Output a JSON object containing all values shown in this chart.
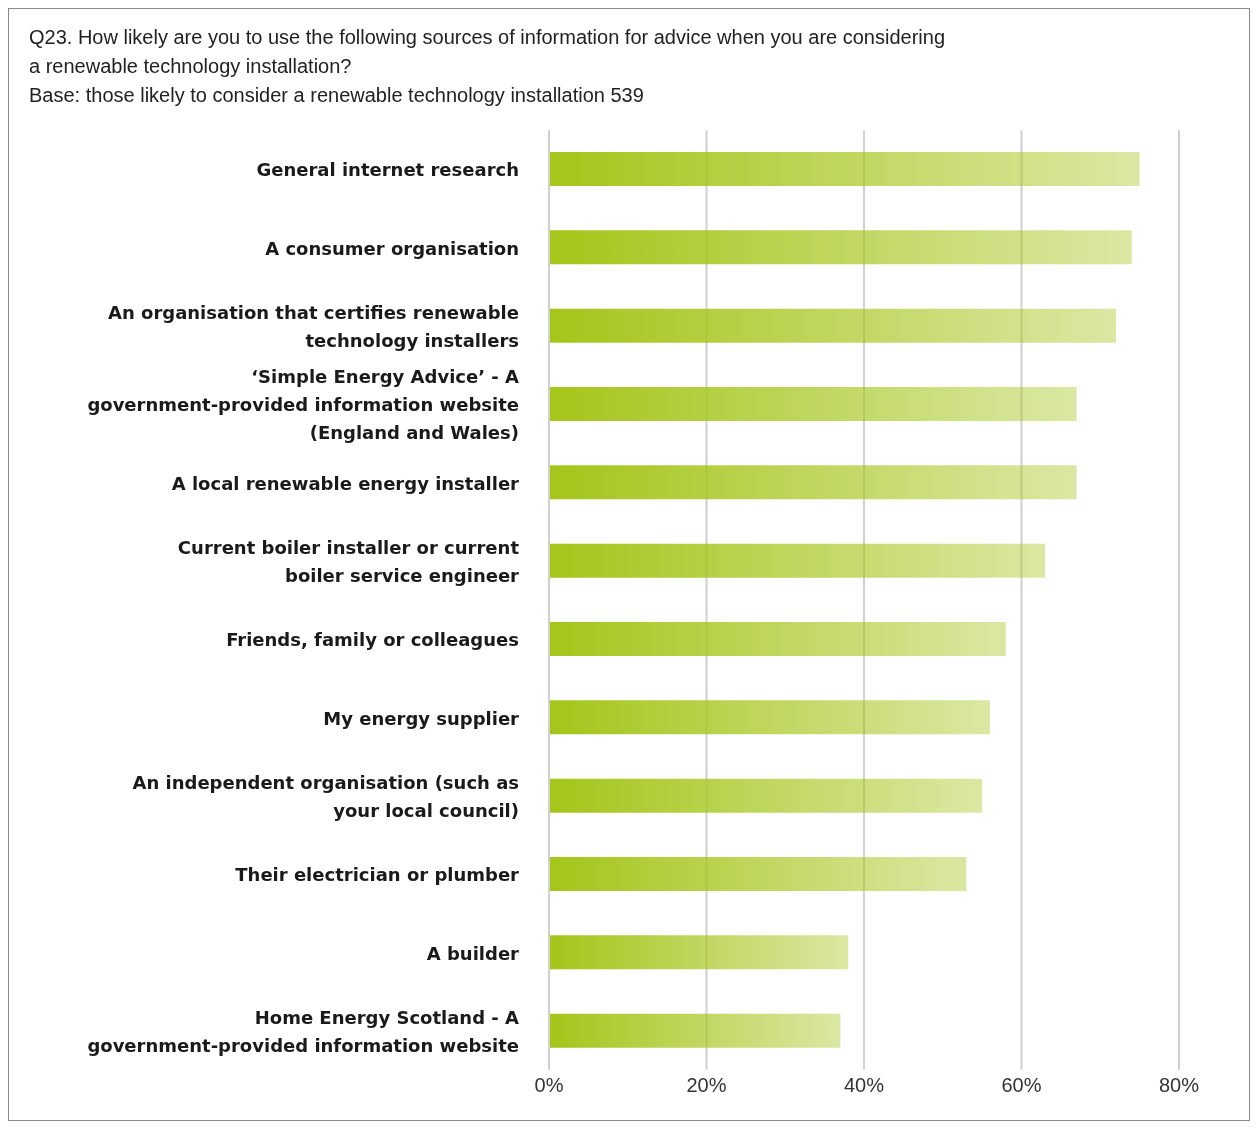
{
  "chart_data": {
    "type": "bar",
    "orientation": "horizontal",
    "title": "Q23. How likely are you to use the following sources of information for advice when you are considering a renewable technology installation?",
    "subtitle": "Base: those likely to consider a renewable technology installation 539",
    "categories": [
      "General internet research",
      "A consumer organisation",
      "An organisation that certifies renewable technology installers",
      "‘Simple Energy Advice’ - A government-provided information website (England and Wales)",
      "A local renewable energy installer",
      "Current boiler installer or current boiler service engineer",
      "Friends, family or colleagues",
      "My energy supplier",
      "An independent organisation (such as your local council)",
      "Their electrician or plumber",
      "A builder",
      "Home Energy Scotland - A government-provided information website"
    ],
    "values": [
      75,
      74,
      72,
      67,
      67,
      63,
      58,
      56,
      55,
      53,
      38,
      37
    ],
    "color": "#a4c519",
    "xlim": [
      0,
      80
    ],
    "xticks": [
      {
        "value": 0,
        "label": "0%"
      },
      {
        "value": 20,
        "label": "20%"
      },
      {
        "value": 40,
        "label": "40%"
      },
      {
        "value": 60,
        "label": "60%"
      },
      {
        "value": 80,
        "label": "80%"
      }
    ],
    "grid": "x",
    "legend": false
  }
}
